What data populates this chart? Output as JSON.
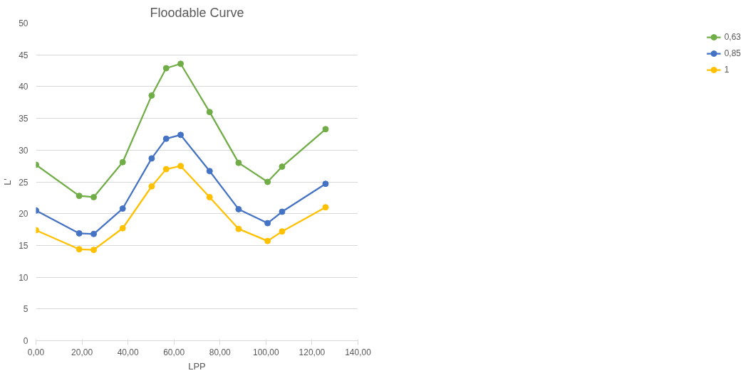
{
  "chart_data": {
    "type": "line",
    "title": "Floodable Curve",
    "xlabel": "LPP",
    "ylabel": "L'",
    "x": [
      0,
      18.8,
      25.1,
      37.7,
      50.3,
      56.6,
      62.9,
      75.5,
      88.1,
      100.7,
      107.0,
      125.9
    ],
    "series": [
      {
        "name": "0,63",
        "color": "#70ad47",
        "values": [
          27.7,
          22.8,
          22.6,
          28.1,
          38.6,
          42.9,
          43.6,
          36.0,
          28.0,
          25.0,
          27.4,
          33.3
        ]
      },
      {
        "name": "0,85",
        "color": "#4472c4",
        "values": [
          20.5,
          16.9,
          16.8,
          20.8,
          28.7,
          31.8,
          32.4,
          26.7,
          20.7,
          18.5,
          20.3,
          24.7
        ]
      },
      {
        "name": "1",
        "color": "#ffc000",
        "values": [
          17.4,
          14.4,
          14.3,
          17.7,
          24.3,
          27.0,
          27.5,
          22.6,
          17.6,
          15.7,
          17.2,
          21.0
        ]
      }
    ],
    "xlim": [
      0,
      140
    ],
    "ylim": [
      0,
      50
    ],
    "xticks": [
      {
        "value": 0,
        "label": "0,00"
      },
      {
        "value": 20,
        "label": "20,00"
      },
      {
        "value": 40,
        "label": "40,00"
      },
      {
        "value": 60,
        "label": "60,00"
      },
      {
        "value": 80,
        "label": "80,00"
      },
      {
        "value": 100,
        "label": "100,00"
      },
      {
        "value": 120,
        "label": "120,00"
      },
      {
        "value": 140,
        "label": "140,00"
      }
    ],
    "yticks": [
      0,
      5,
      10,
      15,
      20,
      25,
      30,
      35,
      40,
      45,
      50
    ],
    "grid": "y",
    "legend": "right",
    "marker": "circle",
    "line_style": "solid"
  }
}
